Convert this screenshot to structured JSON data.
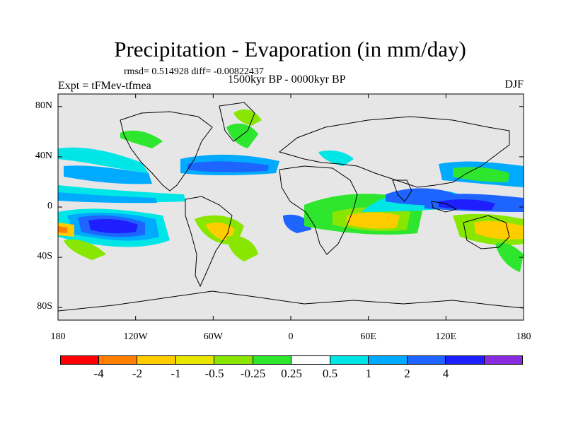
{
  "title": "Precipitation - Evaporation (in mm/day)",
  "stats": "rmsd= 0.514928 diff= -0.00822437",
  "period": "1500kyr BP - 0000kyr BP",
  "experiment": "Expt = tFMev-tfmea",
  "season": "DJF",
  "axes": {
    "y_ticks": [
      {
        "label": "80N",
        "lat": 80
      },
      {
        "label": "40N",
        "lat": 40
      },
      {
        "label": "0",
        "lat": 0
      },
      {
        "label": "40S",
        "lat": -40
      },
      {
        "label": "80S",
        "lat": -80
      }
    ],
    "x_ticks": [
      {
        "label": "180",
        "lon": -180
      },
      {
        "label": "120W",
        "lon": -120
      },
      {
        "label": "60W",
        "lon": -60
      },
      {
        "label": "0",
        "lon": 0
      },
      {
        "label": "60E",
        "lon": 60
      },
      {
        "label": "120E",
        "lon": 120
      },
      {
        "label": "180",
        "lon": 180
      }
    ]
  },
  "legend": {
    "colors": [
      "#ff0000",
      "#ff8000",
      "#ffcc00",
      "#e6e600",
      "#88e600",
      "#2ee62e",
      "#ffffff",
      "#00e6e6",
      "#00aaff",
      "#1e64ff",
      "#1e1eff",
      "#8a2be2"
    ],
    "labels": [
      "-4",
      "-2",
      "-1",
      "-0.5",
      "-0.25",
      "0.25",
      "0.5",
      "1",
      "2",
      "4"
    ]
  },
  "colors": {
    "background_land": "#e6e6e6",
    "coastline": "#000000"
  }
}
